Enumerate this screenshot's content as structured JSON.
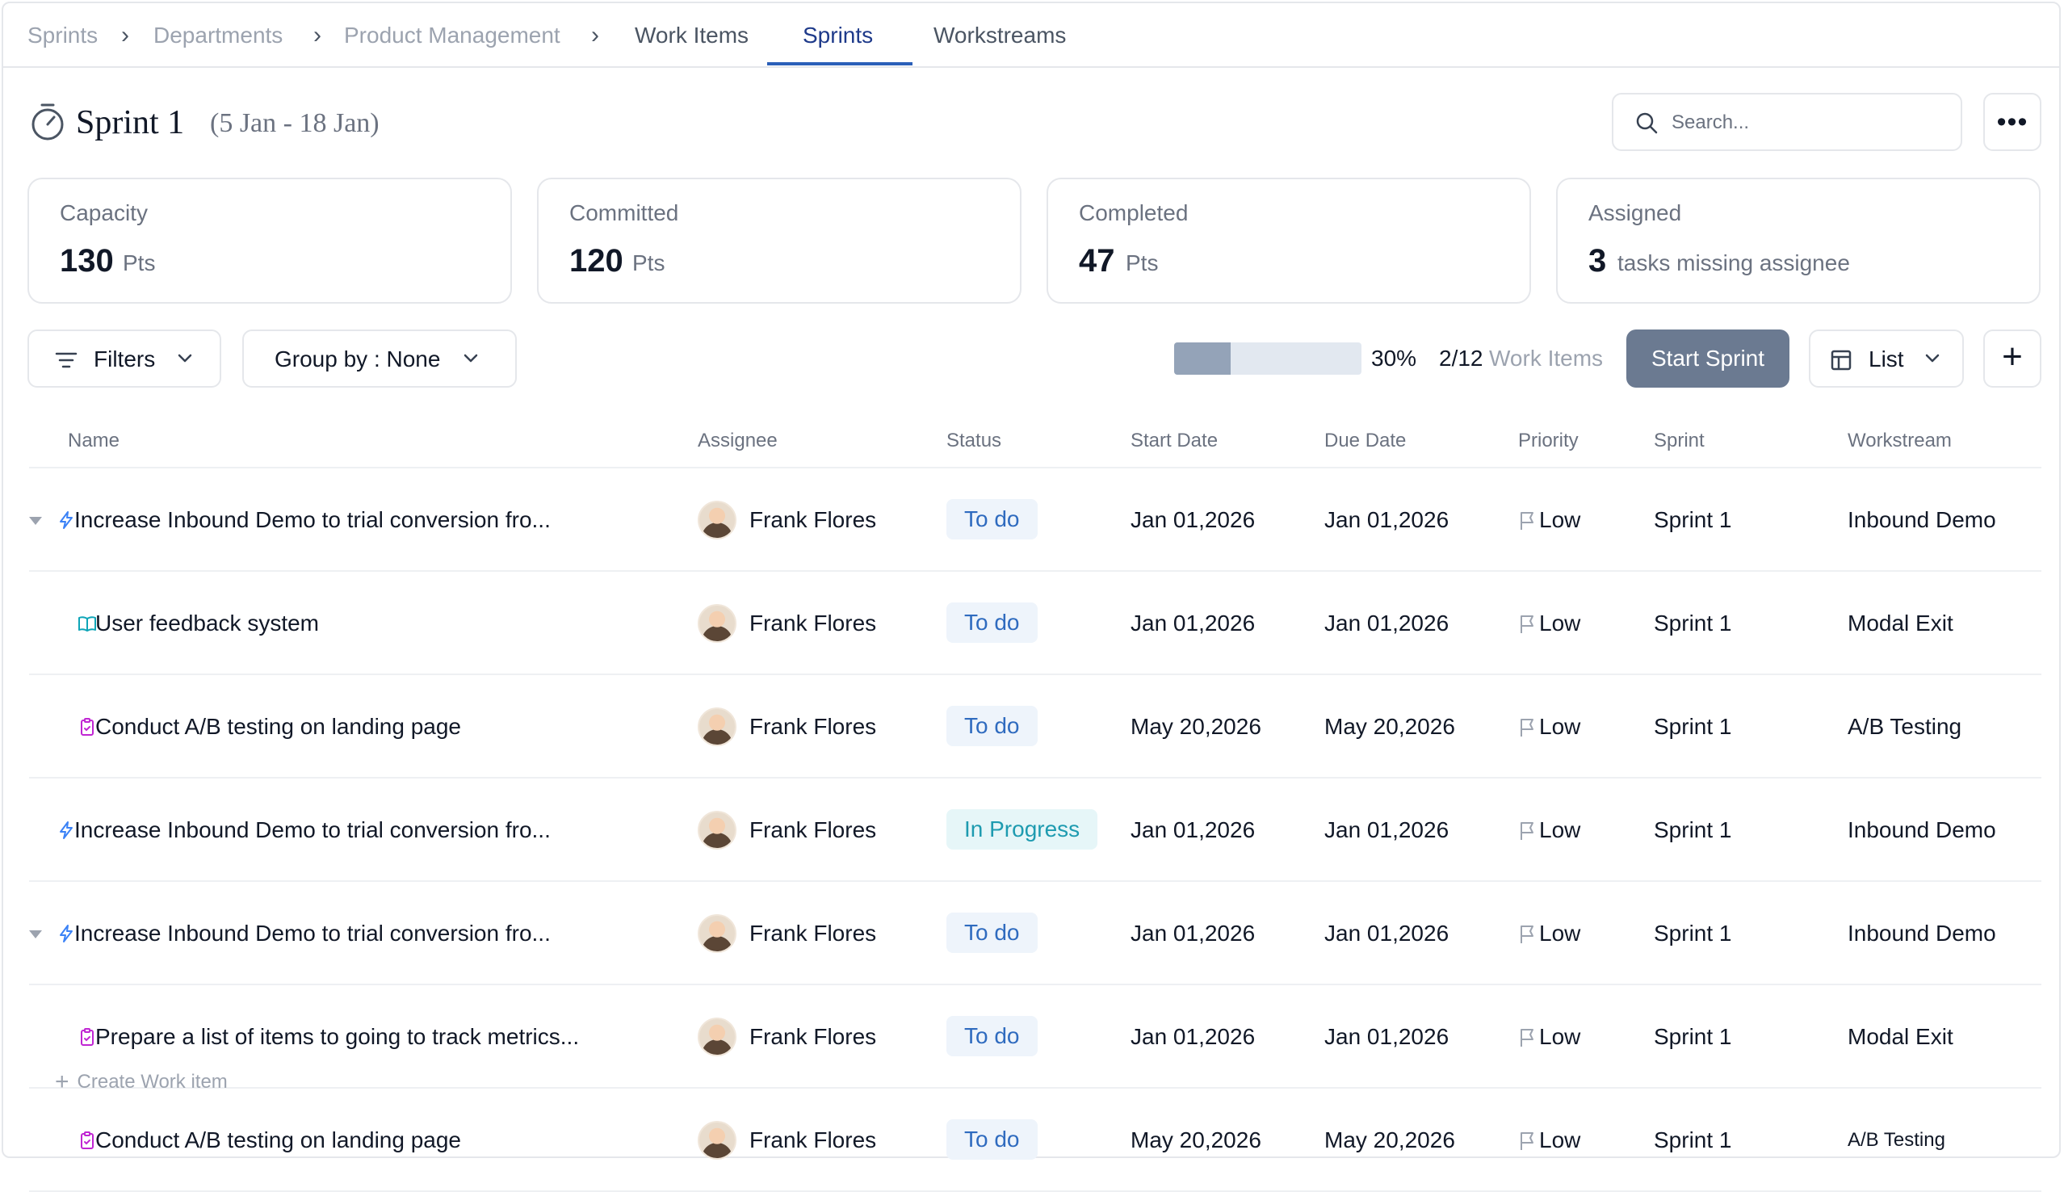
{
  "breadcrumbs": [
    "Sprints",
    "Departments",
    "Product Management"
  ],
  "tabs": [
    {
      "label": "Work Items",
      "active": false
    },
    {
      "label": "Sprints",
      "active": true
    },
    {
      "label": "Workstreams",
      "active": false
    }
  ],
  "header": {
    "title": "Sprint 1",
    "dates": "(5 Jan - 18 Jan)",
    "search_placeholder": "Search...",
    "more_label": "•••"
  },
  "stats": [
    {
      "label": "Capacity",
      "value": "130",
      "unit": "Pts"
    },
    {
      "label": "Committed",
      "value": "120",
      "unit": "Pts"
    },
    {
      "label": "Completed",
      "value": "47",
      "unit": "Pts"
    },
    {
      "label": "Assigned",
      "value": "3",
      "unit": "tasks missing assignee"
    }
  ],
  "toolbar": {
    "filters_label": "Filters",
    "group_by_label": "Group by : None",
    "progress_percent": 30,
    "progress_label": "30%",
    "work_items_count": "2/12",
    "work_items_label": "Work Items",
    "start_sprint_label": "Start Sprint",
    "view_label": "List",
    "add_label": "+"
  },
  "table": {
    "columns": [
      "Name",
      "Assignee",
      "Status",
      "Start Date",
      "Due Date",
      "Priority",
      "Sprint",
      "Workstream"
    ],
    "rows": [
      {
        "name": "Increase Inbound Demo to trial conversion fro...",
        "type": "lightning-icon",
        "expandable": true,
        "child": false,
        "assignee": "Frank Flores",
        "status": "To do",
        "status_kind": "todo",
        "start": "Jan 01,2026",
        "due": "Jan 01,2026",
        "priority": "Low",
        "sprint": "Sprint 1",
        "workstream": "Inbound Demo"
      },
      {
        "name": "User feedback system",
        "type": "book-icon",
        "expandable": false,
        "child": true,
        "assignee": "Frank Flores",
        "status": "To do",
        "status_kind": "todo",
        "start": "Jan 01,2026",
        "due": "Jan 01,2026",
        "priority": "Low",
        "sprint": "Sprint 1",
        "workstream": "Modal Exit"
      },
      {
        "name": "Conduct A/B testing on landing page",
        "type": "clipboard-icon",
        "expandable": false,
        "child": true,
        "assignee": "Frank Flores",
        "status": "To do",
        "status_kind": "todo",
        "start": "May 20,2026",
        "due": "May 20,2026",
        "priority": "Low",
        "sprint": "Sprint 1",
        "workstream": "A/B Testing"
      },
      {
        "name": "Increase Inbound Demo to trial conversion fro...",
        "type": "lightning-icon",
        "expandable": false,
        "child": false,
        "assignee": "Frank Flores",
        "status": "In Progress",
        "status_kind": "prog",
        "start": "Jan 01,2026",
        "due": "Jan 01,2026",
        "priority": "Low",
        "sprint": "Sprint 1",
        "workstream": "Inbound Demo"
      },
      {
        "name": "Increase Inbound Demo to trial conversion fro...",
        "type": "lightning-icon",
        "expandable": true,
        "child": false,
        "assignee": "Frank Flores",
        "status": "To do",
        "status_kind": "todo",
        "start": "Jan 01,2026",
        "due": "Jan 01,2026",
        "priority": "Low",
        "sprint": "Sprint 1",
        "workstream": "Inbound Demo"
      },
      {
        "name": "Prepare a list of items to going to track metrics...",
        "type": "clipboard-icon",
        "expandable": false,
        "child": true,
        "assignee": "Frank Flores",
        "status": "To do",
        "status_kind": "todo",
        "start": "Jan 01,2026",
        "due": "Jan 01,2026",
        "priority": "Low",
        "sprint": "Sprint 1",
        "workstream": "Modal Exit"
      },
      {
        "name": "Conduct A/B testing on landing page",
        "type": "clipboard-icon",
        "expandable": false,
        "child": true,
        "assignee": "Frank Flores",
        "status": "To do",
        "status_kind": "todo",
        "start": "May 20,2026",
        "due": "May 20,2026",
        "priority": "Low",
        "sprint": "Sprint 1",
        "workstream": "A/B Testing"
      }
    ],
    "create_label": "Create Work item"
  },
  "colors": {
    "accent": "#2b5fb8",
    "start_sprint_bg": "#6b7a91",
    "todo_bg": "#eef4fb",
    "todo_text": "#2f6bbf",
    "progress_bg": "#e6f6f8",
    "progress_text": "#1e9bb0"
  }
}
